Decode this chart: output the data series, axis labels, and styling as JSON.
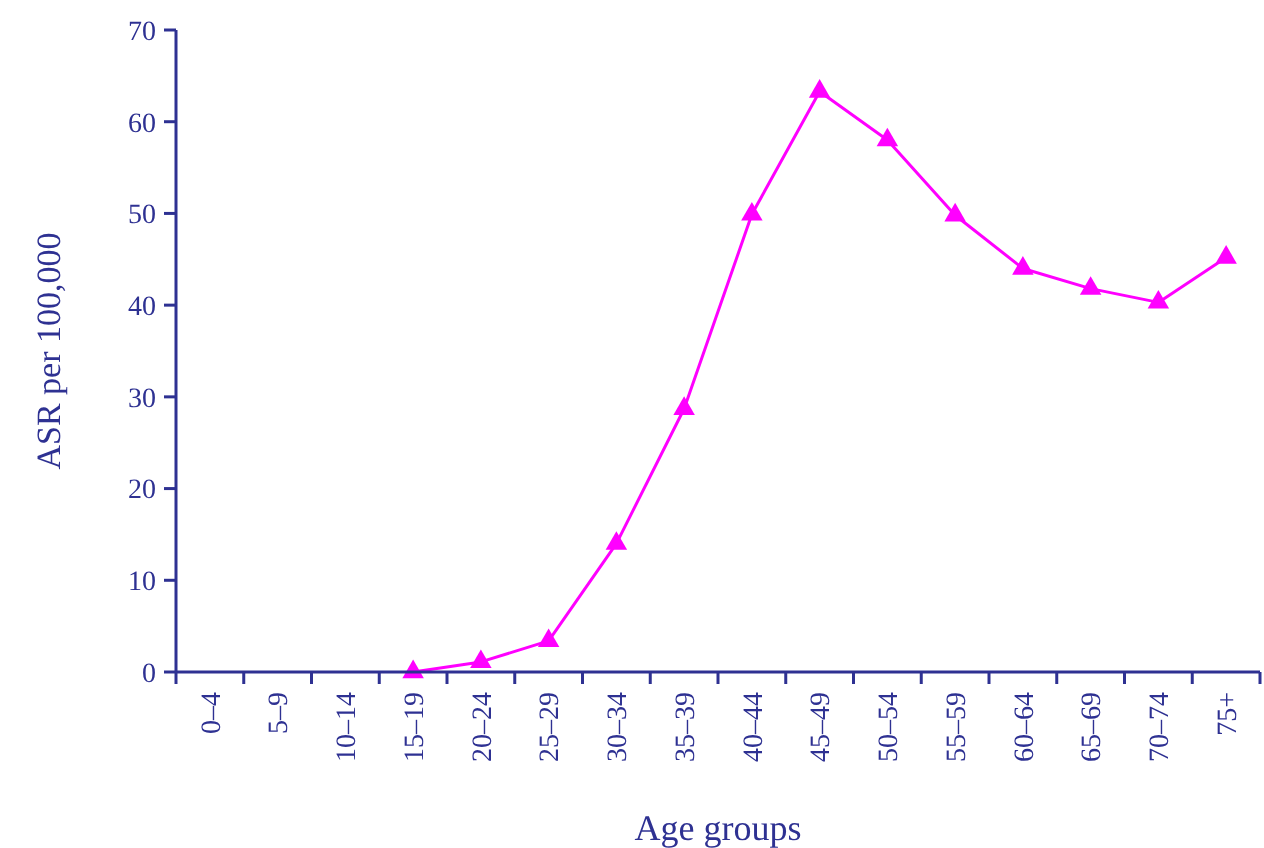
{
  "chart_data": {
    "type": "line",
    "xlabel": "Age groups",
    "ylabel": "ASR per 100,000",
    "categories": [
      "0–4",
      "5–9",
      "10–14",
      "15–19",
      "20–24",
      "25–29",
      "30–34",
      "35–39",
      "40–44",
      "45–49",
      "50–54",
      "55–59",
      "60–64",
      "65–69",
      "70–74",
      "75+"
    ],
    "series": [
      {
        "color": "#ff00ff",
        "values": [
          null,
          null,
          null,
          0,
          1.1,
          3.4,
          14,
          28.7,
          49.9,
          63.3,
          58,
          49.8,
          44,
          41.8,
          40.3,
          45.2
        ]
      }
    ],
    "ylim": [
      0,
      70
    ],
    "yticks": [
      0,
      10,
      20,
      30,
      40,
      50,
      60,
      70
    ],
    "grid": false,
    "marker": "triangle",
    "line_style": "solid"
  }
}
